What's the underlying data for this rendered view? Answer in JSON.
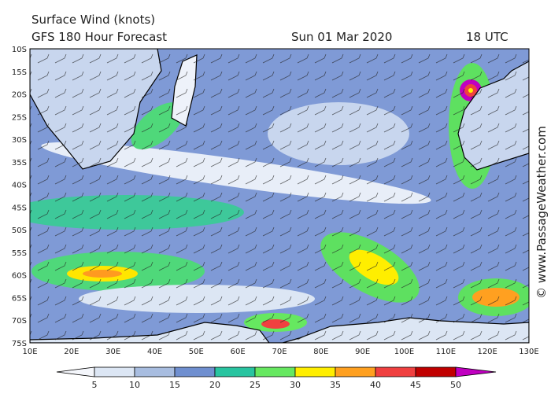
{
  "header": {
    "title": "Surface Wind (knots)",
    "subtitle": "GFS 180 Hour Forecast",
    "date": "Sun 01 Mar 2020",
    "time": "18 UTC"
  },
  "lat_labels": [
    "10S",
    "15S",
    "20S",
    "25S",
    "30S",
    "35S",
    "40S",
    "45S",
    "50S",
    "55S",
    "60S",
    "65S",
    "70S",
    "75S"
  ],
  "lon_labels": [
    "10E",
    "20E",
    "30E",
    "40E",
    "50E",
    "60E",
    "70E",
    "80E",
    "90E",
    "100E",
    "110E",
    "120E",
    "130E"
  ],
  "legend": {
    "ticks": [
      5,
      10,
      15,
      20,
      25,
      30,
      35,
      40,
      45,
      50
    ],
    "colors": [
      "#f4f6fb",
      "#dce6f4",
      "#a8bde0",
      "#6f8fd0",
      "#28c4a0",
      "#66e860",
      "#ffee00",
      "#ffa020",
      "#f04040",
      "#c00000",
      "#c000c0"
    ]
  },
  "credit": "© www.PassageWeather.com"
}
